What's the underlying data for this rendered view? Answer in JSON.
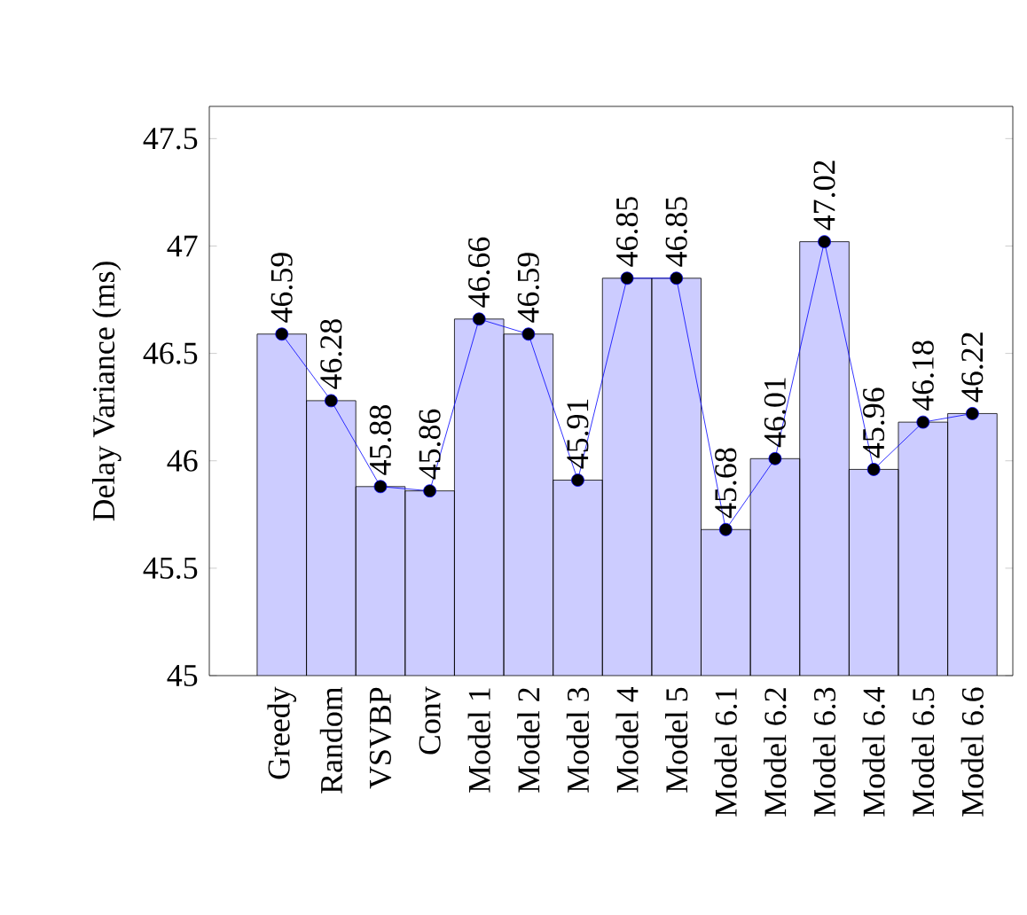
{
  "chart_data": {
    "type": "bar",
    "ylabel": "Delay Variance (ms)",
    "categories": [
      "Greedy",
      "Random",
      "VSVBP",
      "Conv",
      "Model 1",
      "Model 2",
      "Model 3",
      "Model 4",
      "Model 5",
      "Model 6.1",
      "Model 6.2",
      "Model 6.3",
      "Model 6.4",
      "Model 6.5",
      "Model 6.6"
    ],
    "series": [
      {
        "color": "#ccccff",
        "values": [
          46.59,
          46.28,
          45.88,
          45.86,
          46.66,
          46.59,
          45.91,
          46.85,
          46.85,
          45.68,
          46.01,
          47.02,
          45.96,
          46.18,
          46.22
        ]
      },
      {
        "type": "line",
        "color": "#0000ff",
        "marker": "circle",
        "values": [
          46.59,
          46.28,
          45.88,
          45.86,
          46.66,
          46.59,
          45.91,
          46.85,
          46.85,
          45.68,
          46.01,
          47.02,
          45.96,
          46.18,
          46.22
        ],
        "value_labels": [
          "46.59",
          "46.28",
          "45.88",
          "45.86",
          "46.66",
          "46.59",
          "45.91",
          "46.85",
          "46.85",
          "45.68",
          "46.01",
          "47.02",
          "45.96",
          "46.18",
          "46.22"
        ]
      }
    ],
    "ylim": [
      45,
      47.65
    ],
    "yticks": [
      45,
      45.5,
      46,
      46.5,
      47,
      47.5
    ],
    "grid": false
  }
}
